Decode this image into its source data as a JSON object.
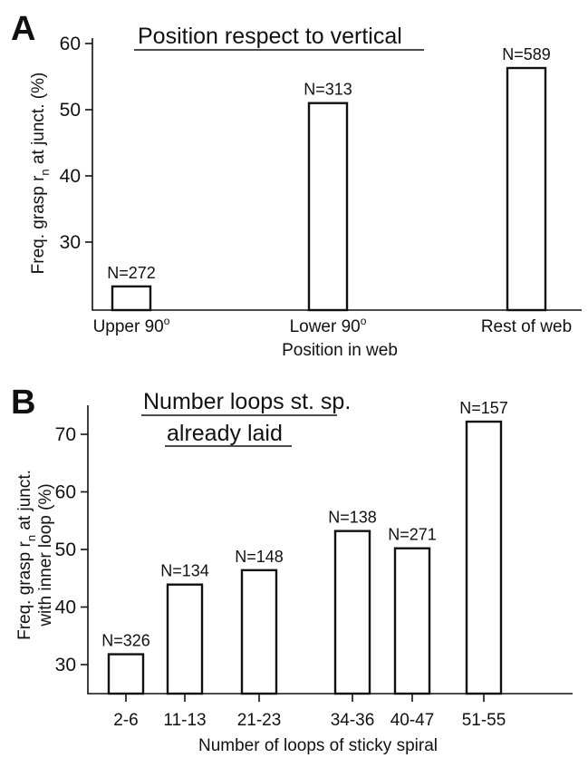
{
  "chart_data": [
    {
      "panel": "A",
      "type": "bar",
      "title": "Position respect to vertical",
      "xlabel": "Position in web",
      "ylabel_parts": [
        "Freq. grasp r",
        "n",
        " at junct. (%)"
      ],
      "categories": [
        {
          "base": "Upper 90",
          "sup": "o"
        },
        {
          "base": "Lower 90",
          "sup": "o"
        },
        {
          "base": "Rest of web",
          "sup": ""
        }
      ],
      "values": [
        23.3,
        51,
        56.3
      ],
      "labels": [
        "N=272",
        "N=313",
        "N=589"
      ],
      "ylim": [
        20,
        62
      ],
      "yticks": [
        30,
        40,
        50,
        60
      ],
      "grid": false,
      "legend": "none"
    },
    {
      "panel": "B",
      "type": "bar",
      "title_lines": [
        "Number loops st. sp.",
        "already laid"
      ],
      "xlabel": "Number of loops of sticky spiral",
      "ylabel_line1_parts": [
        "Freq. grasp r",
        "n",
        " at junct."
      ],
      "ylabel_line2": "with inner loop  (%)",
      "categories": [
        "2-6",
        "11-13",
        "21-23",
        "34-36",
        "40-47",
        "51-55"
      ],
      "values": [
        31.8,
        43.9,
        46.4,
        53.2,
        50.2,
        72.2
      ],
      "labels": [
        "N=326",
        "N=134",
        "N=148",
        "N=138",
        "N=271",
        "N=157"
      ],
      "ylim": [
        25,
        76
      ],
      "yticks": [
        30,
        40,
        50,
        60,
        70
      ],
      "grid": false,
      "legend": "none"
    }
  ]
}
